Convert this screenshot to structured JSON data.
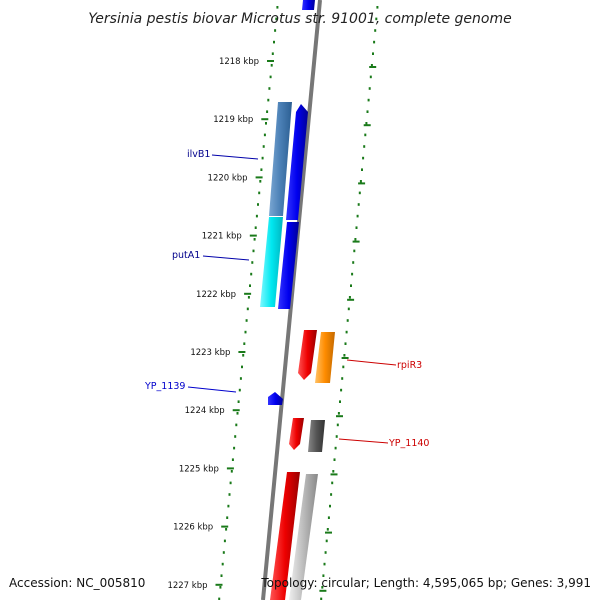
{
  "title": "Yersinia pestis biovar Microtus str. 91001, complete genome",
  "footer": {
    "accession": "Accession: NC_005810",
    "topology": "Topology: circular; Length: 4,595,065 bp; Genes: 3,991"
  },
  "kbp_labels": [
    "1218 kbp",
    "1219 kbp",
    "1220 kbp",
    "1221 kbp",
    "1222 kbp",
    "1223 kbp",
    "1224 kbp",
    "1225 kbp",
    "1226 kbp",
    "1227 kbp"
  ],
  "gene_labels": [
    {
      "text": "ilvB1",
      "side": "left",
      "color": "#00008b"
    },
    {
      "text": "putA1",
      "side": "left",
      "color": "#00008b"
    },
    {
      "text": "YP_1139",
      "side": "left",
      "color": "#0000cc"
    },
    {
      "text": "rpiR3",
      "side": "right",
      "color": "#cc0000"
    },
    {
      "text": "YP_1140",
      "side": "right",
      "color": "#cc0000"
    }
  ],
  "colors": {
    "backbone": "#777777",
    "ticks": "#1a7a1a",
    "blue": "#0000ee",
    "steelblue": "#4a7fb5",
    "cyan": "#00e8f0",
    "red": "#ee0000",
    "orange": "#ff8c00",
    "darkgray": "#555555",
    "lightgray": "#bbbbbb"
  }
}
